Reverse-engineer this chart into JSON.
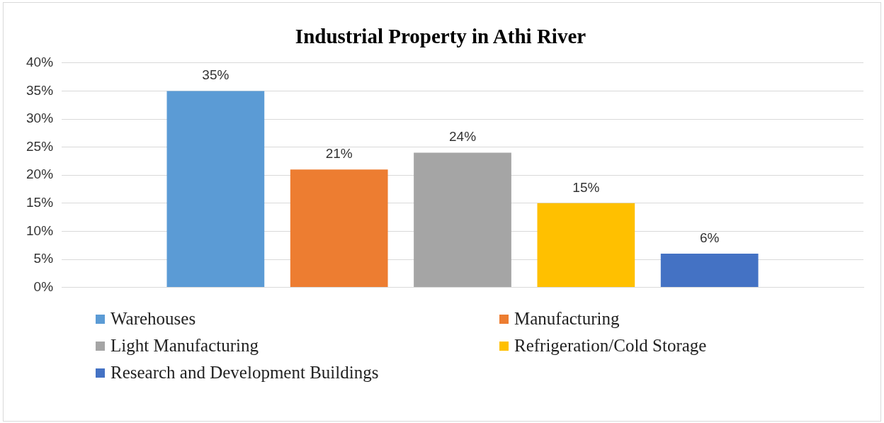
{
  "chart_data": {
    "type": "bar",
    "title": "Industrial Property in Athi River",
    "categories": [
      null
    ],
    "series": [
      {
        "name": "Warehouses",
        "color": "#5b9bd5",
        "values": [
          35
        ],
        "value_labels": [
          "35%"
        ]
      },
      {
        "name": "Manufacturing",
        "color": "#ed7d31",
        "values": [
          21
        ],
        "value_labels": [
          "21%"
        ]
      },
      {
        "name": "Light Manufacturing",
        "color": "#a5a5a5",
        "values": [
          24
        ],
        "value_labels": [
          "24%"
        ]
      },
      {
        "name": "Refrigeration/Cold Storage",
        "color": "#ffc000",
        "values": [
          15
        ],
        "value_labels": [
          "15%"
        ]
      },
      {
        "name": "Research and Development Buildings",
        "color": "#4472c4",
        "values": [
          6
        ],
        "value_labels": [
          "6%"
        ]
      }
    ],
    "ylim": [
      0,
      40
    ],
    "yticks": [
      {
        "value": 0,
        "label": "0%"
      },
      {
        "value": 5,
        "label": "5%"
      },
      {
        "value": 10,
        "label": "10%"
      },
      {
        "value": 15,
        "label": "15%"
      },
      {
        "value": 20,
        "label": "20%"
      },
      {
        "value": 25,
        "label": "25%"
      },
      {
        "value": 30,
        "label": "30%"
      },
      {
        "value": 35,
        "label": "35%"
      },
      {
        "value": 40,
        "label": "40%"
      }
    ],
    "grid": "y",
    "legend": "bottom",
    "tick_labels": "y"
  }
}
